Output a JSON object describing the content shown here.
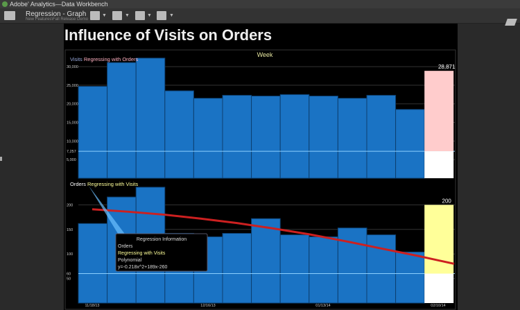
{
  "window": {
    "title": "Adobe' Analytics—Data Workbench"
  },
  "toolbar": {
    "title": "Regression - Graph",
    "subtitle": "New Features\\Fall Release Demo",
    "icons": [
      "workspace-menu-icon",
      "layout-icon",
      "add-visualization-icon",
      "export-icon",
      "help-icon"
    ]
  },
  "page": {
    "title": "Influence of Visits on Orders"
  },
  "colors": {
    "bar": "#1a73c4",
    "highlight_top": "#ffcccc",
    "highlight_bottom": "#ffff99",
    "regression": "#cc2020"
  },
  "chart_data": [
    {
      "type": "bar",
      "title": "Week",
      "label_metric": "Visits",
      "label_rest": "Regressing with Orders",
      "ytick_labels": [
        "30,000",
        "25,000",
        "20,000",
        "15,000",
        "10,000",
        "7,257",
        "5,000"
      ],
      "yticks": [
        30000,
        25000,
        20000,
        15000,
        10000,
        7257,
        5000
      ],
      "ylim": [
        0,
        33000
      ],
      "values": [
        24700,
        31100,
        32300,
        23500,
        21500,
        22300,
        22100,
        22500,
        22100,
        21500,
        22300,
        18500
      ],
      "highlight": {
        "value": 28871,
        "label": "28,871",
        "lower": 7257
      }
    },
    {
      "type": "bar",
      "label_metric": "Orders",
      "label_rest": "Regressing with Visits",
      "ytick_labels": [
        "200",
        "150",
        "100",
        "60",
        "50"
      ],
      "yticks": [
        200,
        150,
        100,
        60,
        50
      ],
      "ylim": [
        0,
        250
      ],
      "values": [
        162,
        216,
        236,
        142,
        135,
        142,
        172,
        139,
        135,
        153,
        139,
        104
      ],
      "highlight": {
        "value": 200,
        "label": "200",
        "lower": 60
      },
      "regression_curve": [
        191,
        186,
        180,
        172,
        163,
        152,
        140,
        126,
        111,
        96,
        80
      ],
      "xtick_labels": [
        "11/18/13",
        "12/16/13",
        "01/13/14",
        "02/10/14"
      ],
      "tooltip": {
        "title": "Regression Information",
        "metric": "Orders",
        "relation": "Regressing with Visits",
        "model": "Polynomial",
        "equation": "y=-0.218x^2+189x-260"
      }
    }
  ]
}
